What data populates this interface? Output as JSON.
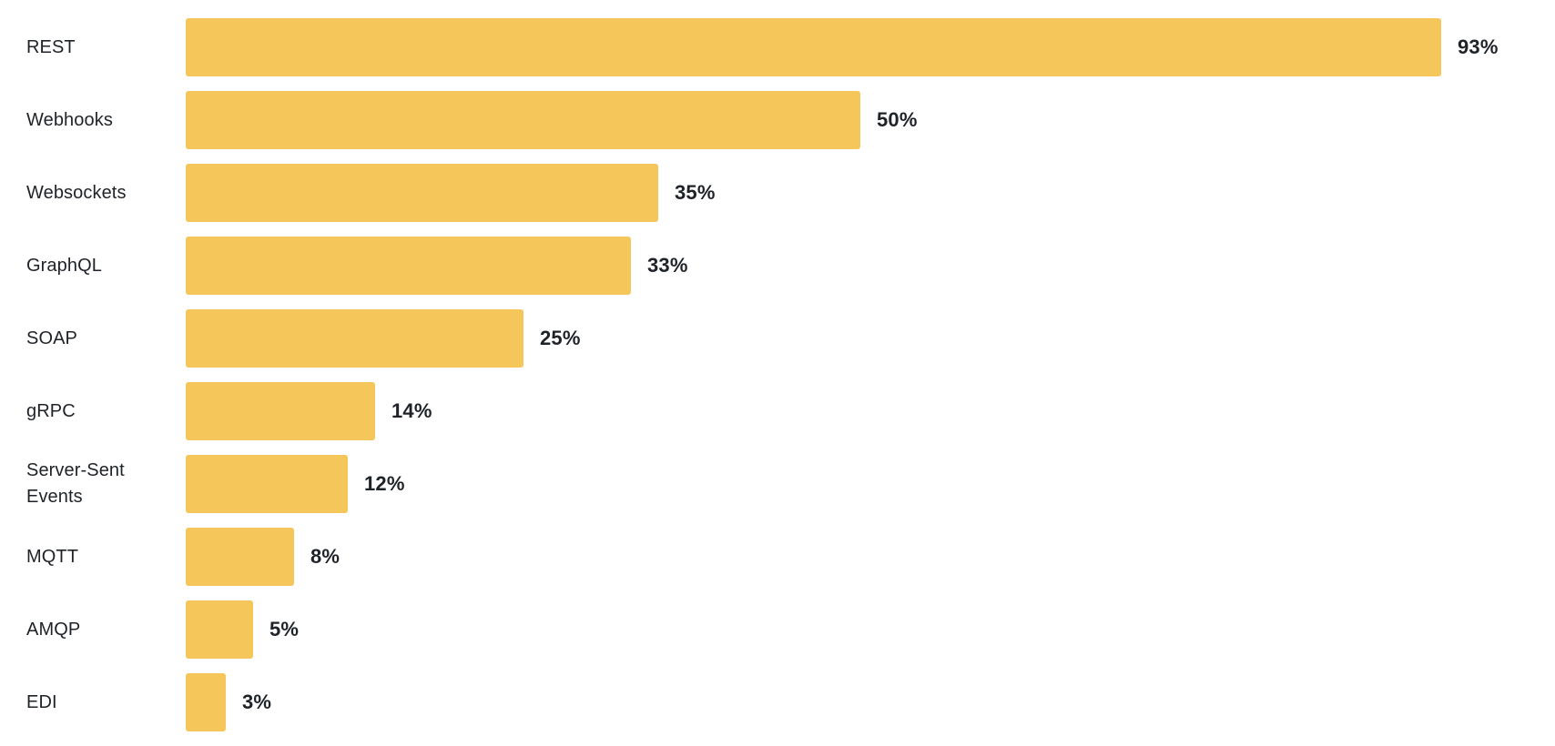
{
  "chart_data": {
    "type": "bar",
    "orientation": "horizontal",
    "title": "",
    "xlabel": "",
    "ylabel": "",
    "categories": [
      "REST",
      "Webhooks",
      "Websockets",
      "GraphQL",
      "SOAP",
      "gRPC",
      "Server-Sent Events",
      "MQTT",
      "AMQP",
      "EDI"
    ],
    "values": [
      93,
      50,
      35,
      33,
      25,
      14,
      12,
      8,
      5,
      3
    ],
    "value_labels": [
      "93%",
      "50%",
      "35%",
      "33%",
      "25%",
      "14%",
      "12%",
      "8%",
      "5%",
      "3%"
    ],
    "xlim": [
      0,
      100
    ],
    "grid": false,
    "legend": false,
    "bar_color": "#F5C65A",
    "label_color": "#1F2328",
    "value_color": "#1F2328",
    "background_color": "#FFFFFF"
  }
}
